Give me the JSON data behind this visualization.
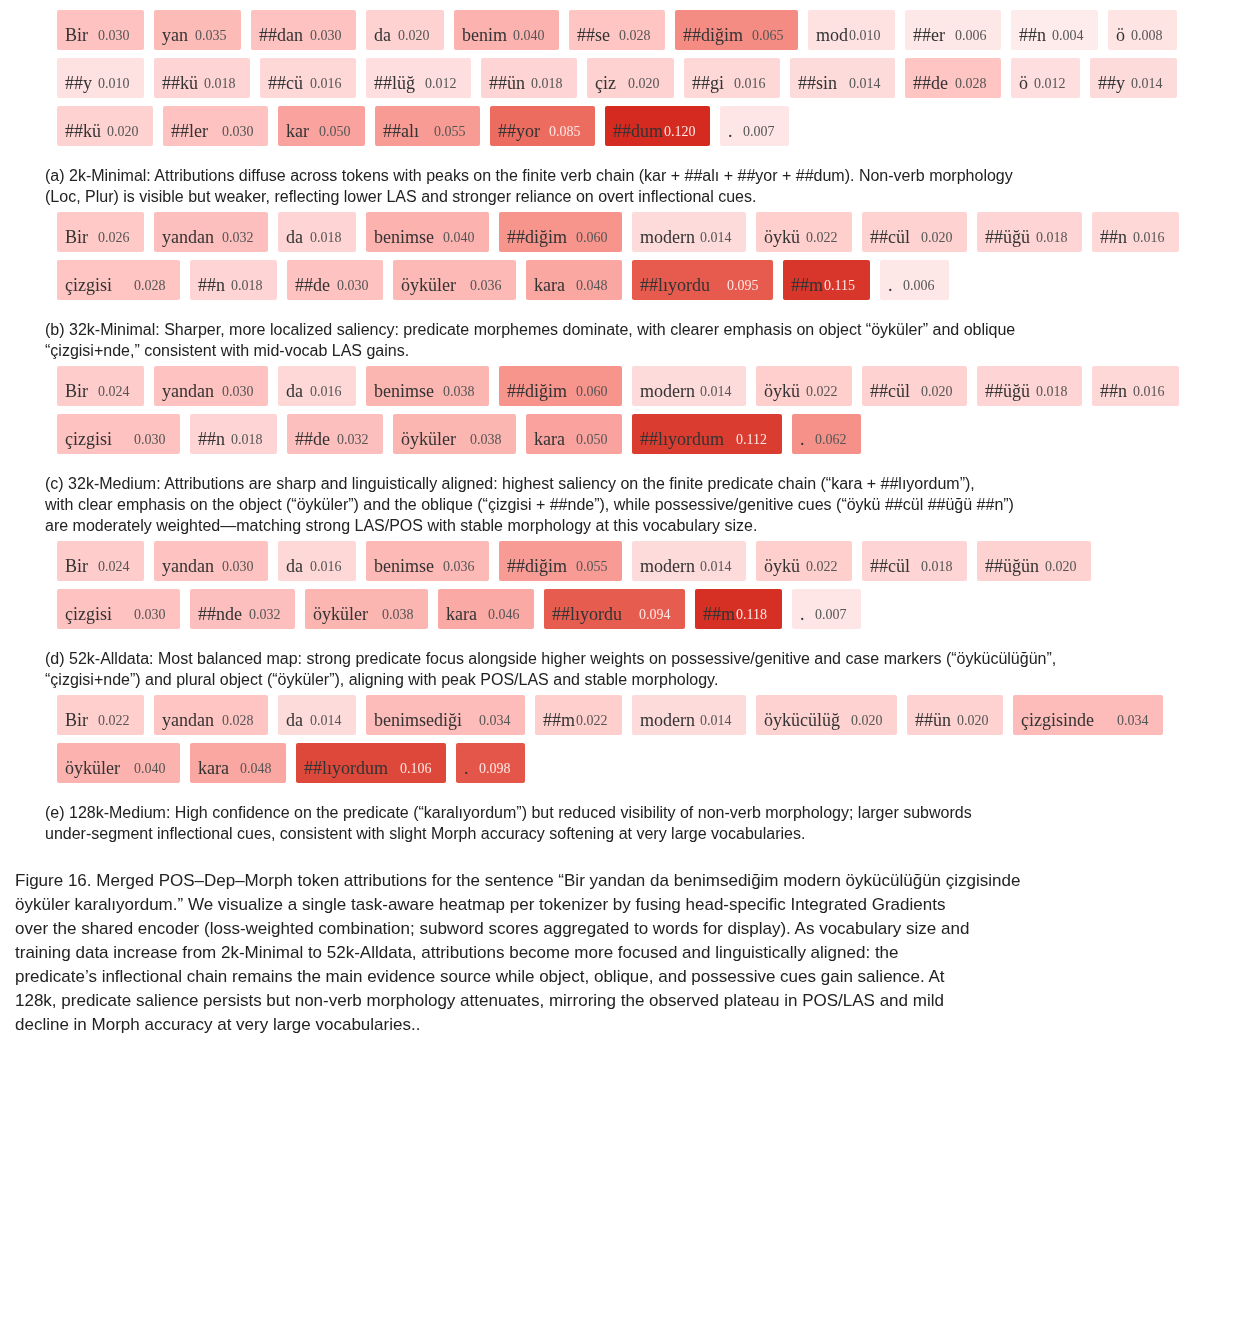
{
  "chart_data": [
    {
      "type": "other",
      "categories": [
        "Bir",
        "yan",
        "##dan",
        "da",
        "benim",
        "##se",
        "##diğim",
        "mod",
        "##er",
        "##n",
        "ö",
        "##y",
        "##kü",
        "##cü",
        "##lüğ",
        "##ün",
        "çiz",
        "##gi",
        "##sin",
        "##de",
        "ö",
        "##y",
        "##kü",
        "##ler",
        "kar",
        "##alı",
        "##yor",
        "##dum",
        "."
      ],
      "values": [
        0.03,
        0.035,
        0.03,
        0.02,
        0.04,
        0.028,
        0.065,
        0.01,
        0.006,
        0.004,
        0.008,
        0.01,
        0.018,
        0.016,
        0.012,
        0.018,
        0.02,
        0.016,
        0.014,
        0.028,
        0.012,
        0.014,
        0.02,
        0.03,
        0.05,
        0.055,
        0.085,
        0.12,
        0.007
      ],
      "value_labels": [
        "0.030",
        "0.035",
        "0.030",
        "0.020",
        "0.040",
        "0.028",
        "0.065",
        "0.010",
        "0.006",
        "0.004",
        "0.008",
        "0.010",
        "0.018",
        "0.016",
        "0.012",
        "0.018",
        "0.020",
        "0.016",
        "0.014",
        "0.028",
        "0.012",
        "0.014",
        "0.020",
        "0.030",
        "0.050",
        "0.055",
        "0.085",
        "0.120",
        "0.007"
      ],
      "annotations": [
        "(a) 2k-Minimal: Attributions diffuse across tokens with peaks on the finite verb chain (kar + ##alı + ##yor + ##dum). Non-verb morphology (Loc, Plur) is visible but weaker, reflecting lower LAS and stronger reliance on overt inflectional cues."
      ]
    },
    {
      "type": "other",
      "categories": [
        "Bir",
        "yandan",
        "da",
        "benimse",
        "##diğim",
        "modern",
        "öykü",
        "##cül",
        "##üğü",
        "##n",
        "çizgisi",
        "##n",
        "##de",
        "öyküler",
        "kara",
        "##lıyordu",
        "##m",
        "."
      ],
      "values": [
        0.026,
        0.032,
        0.018,
        0.04,
        0.06,
        0.014,
        0.022,
        0.02,
        0.018,
        0.016,
        0.028,
        0.018,
        0.03,
        0.036,
        0.048,
        0.095,
        0.115,
        0.006
      ],
      "value_labels": [
        "0.026",
        "0.032",
        "0.018",
        "0.040",
        "0.060",
        "0.014",
        "0.022",
        "0.020",
        "0.018",
        "0.016",
        "0.028",
        "0.018",
        "0.030",
        "0.036",
        "0.048",
        "0.095",
        "0.115",
        "0.006"
      ],
      "annotations": [
        "(b) 32k-Minimal: Sharper, more localized saliency: predicate morphemes dominate, with clearer emphasis on object “öyküler” and oblique “çizgisi+nde,” consistent with mid-vocab LAS gains."
      ]
    },
    {
      "type": "other",
      "categories": [
        "Bir",
        "yandan",
        "da",
        "benimse",
        "##diğim",
        "modern",
        "öykü",
        "##cül",
        "##üğü",
        "##n",
        "çizgisi",
        "##n",
        "##de",
        "öyküler",
        "kara",
        "##lıyordum",
        "."
      ],
      "values": [
        0.024,
        0.03,
        0.016,
        0.038,
        0.06,
        0.014,
        0.022,
        0.02,
        0.018,
        0.016,
        0.03,
        0.018,
        0.032,
        0.038,
        0.05,
        0.112,
        0.062
      ],
      "value_labels": [
        "0.024",
        "0.030",
        "0.016",
        "0.038",
        "0.060",
        "0.014",
        "0.022",
        "0.020",
        "0.018",
        "0.016",
        "0.030",
        "0.018",
        "0.032",
        "0.038",
        "0.050",
        "0.112",
        "0.062"
      ],
      "annotations": [
        "(c) 32k-Medium: Attributions are sharp and linguistically aligned: highest saliency on the finite predicate chain (“kara + ##lıyordum”), with clear emphasis on the object (“öyküler”) and the oblique (“çizgisi + ##nde”), while possessive/genitive cues (“öykü ##cül ##üğü ##n”) are moderately weighted—matching strong LAS/POS with stable morphology at this vocabulary size."
      ]
    },
    {
      "type": "other",
      "categories": [
        "Bir",
        "yandan",
        "da",
        "benimse",
        "##diğim",
        "modern",
        "öykü",
        "##cül",
        "##üğün",
        "çizgisi",
        "##nde",
        "öyküler",
        "kara",
        "##lıyordu",
        "##m",
        "."
      ],
      "values": [
        0.024,
        0.03,
        0.016,
        0.036,
        0.055,
        0.014,
        0.022,
        0.018,
        0.02,
        0.03,
        0.032,
        0.038,
        0.046,
        0.094,
        0.118,
        0.007
      ],
      "value_labels": [
        "0.024",
        "0.030",
        "0.016",
        "0.036",
        "0.055",
        "0.014",
        "0.022",
        "0.018",
        "0.020",
        "0.030",
        "0.032",
        "0.038",
        "0.046",
        "0.094",
        "0.118",
        "0.007"
      ],
      "annotations": [
        "(d) 52k-Alldata: Most balanced map: strong predicate focus alongside higher weights on possessive/genitive and case markers (“öykücülüğün”, “çizgisi+nde”) and plural object (“öyküler”), aligning with peak POS/LAS and stable morphology."
      ]
    },
    {
      "type": "other",
      "categories": [
        "Bir",
        "yandan",
        "da",
        "benimsediği",
        "##m",
        "modern",
        "öykücülüğ",
        "##ün",
        "çizgisinde",
        "öyküler",
        "kara",
        "##lıyordum",
        "."
      ],
      "values": [
        0.022,
        0.028,
        0.014,
        0.034,
        0.022,
        0.014,
        0.02,
        0.02,
        0.034,
        0.04,
        0.048,
        0.106,
        0.098
      ],
      "value_labels": [
        "0.022",
        "0.028",
        "0.014",
        "0.034",
        "0.022",
        "0.014",
        "0.020",
        "0.020",
        "0.034",
        "0.040",
        "0.048",
        "0.106",
        "0.098"
      ],
      "annotations": [
        "(e) 128k-Medium: High confidence on the predicate (“karalıyordum”) but reduced visibility of non-verb morphology; larger subwords under-segment inflectional cues, consistent with slight Morph accuracy softening at very large vocabularies.",
        "Figure 16. Merged POS–Dep–Morph token attributions for the sentence “Bir yandan da benimsediğim modern öykücülüğün çizgisinde öyküler karalıyordum.” We visualize a single task-aware heatmap per tokenizer by fusing head-specific Integrated Gradients over the shared encoder (loss-weighted combination; subword scores aggregated to words for display). As vocabulary size and training data increase from 2k-Minimal to 52k-Alldata, attributions become more focused and linguistically aligned: the predicate’s inflectional chain remains the main evidence source while object, oblique, and possessive cues gain salience. At 128k, predicate salience persists but non-verb morphology attenuates, mirroring the observed plateau in POS/LAS and mild decline in Morph accuracy at very large vocabularies.."
      ]
    }
  ]
}
